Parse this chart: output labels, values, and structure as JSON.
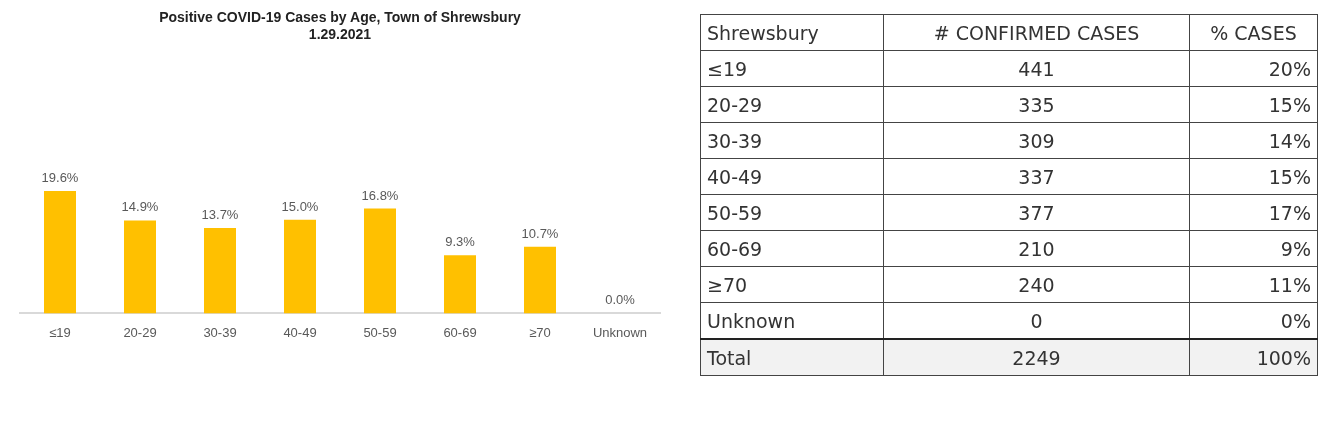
{
  "chart_data": [
    {
      "type": "bar",
      "title": "Positive COVID-19 Cases by Age, Town of Shrewsbury",
      "subtitle": "1.29.2021",
      "categories": [
        "≤19",
        "20-29",
        "30-39",
        "40-49",
        "50-59",
        "60-69",
        "≥70",
        "Unknown"
      ],
      "values": [
        19.6,
        14.9,
        13.7,
        15.0,
        16.8,
        9.3,
        10.7,
        0.0
      ],
      "value_labels": [
        "19.6%",
        "14.9%",
        "13.7%",
        "15.0%",
        "16.8%",
        "9.3%",
        "10.7%",
        "0.0%"
      ],
      "color": "#ffc000",
      "tick_labels": "x"
    },
    {
      "type": "other",
      "ylabel": "Shrewsbury",
      "categories": [
        "# CONFIRMED CASES",
        "% CASES"
      ],
      "y_categories": [
        "≤19",
        "20-29",
        "30-39",
        "40-49",
        "50-59",
        "60-69",
        "≥70",
        "Unknown",
        "Total"
      ],
      "cell_labels": [
        [
          "441",
          "20%"
        ],
        [
          "335",
          "15%"
        ],
        [
          "309",
          "14%"
        ],
        [
          "337",
          "15%"
        ],
        [
          "377",
          "17%"
        ],
        [
          "210",
          "9%"
        ],
        [
          "240",
          "11%"
        ],
        [
          "0",
          "0%"
        ],
        [
          "2249",
          "100%"
        ]
      ]
    }
  ]
}
